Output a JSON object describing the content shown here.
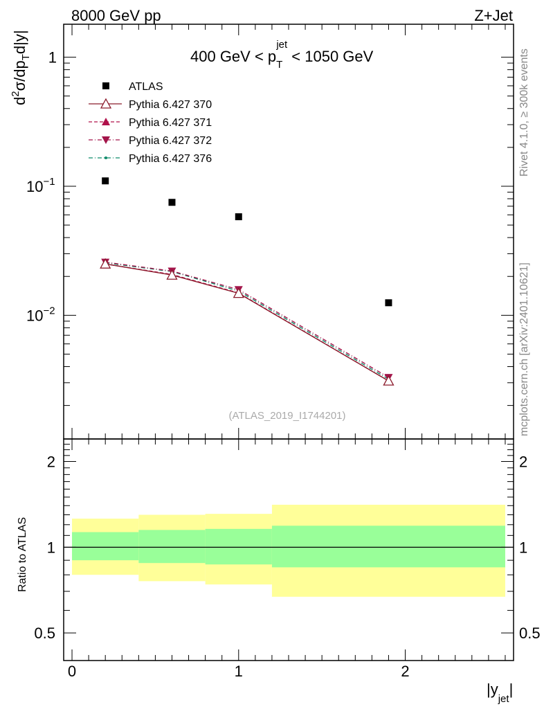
{
  "header": {
    "left": "8000 GeV pp",
    "right": "Z+Jet",
    "cut_prefix": "400 GeV < p",
    "cut_sup": "jet",
    "cut_sub": "T",
    "cut_suffix": " < 1050 GeV"
  },
  "side": {
    "rivet": "Rivet 4.1.0, ≥ 300k events",
    "mcplots": "mcplots.cern.ch [arXiv:2401.10621]"
  },
  "watermark": "(ATLAS_2019_I1744201)",
  "axes": {
    "ylabel_main": "d²σ/dp_T d|y|",
    "ylabel_main_parts": {
      "a": "d",
      "a_sup": "2",
      "b": "σ/dp",
      "b_sub": "T",
      "c": "d|y|"
    },
    "ylabel_ratio": "Ratio to ATLAS",
    "xlabel": "|y_jet|",
    "xlabel_parts": {
      "a": "|y",
      "a_sub": "jet",
      "b": "|"
    },
    "xticks": [
      "0",
      "1",
      "2"
    ],
    "yticks_main": [
      {
        "value": 1,
        "label": "1"
      },
      {
        "value": 0.1,
        "base": "10",
        "exp": "−1"
      },
      {
        "value": 0.01,
        "base": "10",
        "exp": "−2"
      }
    ],
    "yticks_ratio": [
      "0.5",
      "1",
      "2"
    ]
  },
  "legend": [
    {
      "label": "ATLAS",
      "style": "data"
    },
    {
      "label": "Pythia 6.427 370",
      "style": "open-triangle-up",
      "color": "#8b1a2b"
    },
    {
      "label": "Pythia 6.427 371",
      "style": "triangle-up",
      "color": "#b0104a"
    },
    {
      "label": "Pythia 6.427 372",
      "style": "triangle-down",
      "color": "#a3154a"
    },
    {
      "label": "Pythia 6.427 376",
      "style": "dot",
      "color": "#0f8a6a"
    }
  ],
  "chart_data": {
    "type": "scatter",
    "title": "400 GeV < p_T^jet < 1050 GeV",
    "xlabel": "|y_jet|",
    "ylabel": "d²σ/dp_T d|y|",
    "xlim": [
      -0.05,
      2.65
    ],
    "ylim": [
      0.0011,
      1.8
    ],
    "yscale": "log",
    "bin_edges": [
      0,
      0.4,
      0.8,
      1.2,
      2.6
    ],
    "x": [
      0.2,
      0.6,
      1.0,
      1.9
    ],
    "series": [
      {
        "name": "ATLAS",
        "values": [
          0.11,
          0.075,
          0.058,
          0.0125
        ],
        "color": "#000000"
      },
      {
        "name": "Pythia 6.427 370",
        "values": [
          0.025,
          0.0205,
          0.0148,
          0.0031
        ],
        "color": "#8b1a2b"
      },
      {
        "name": "Pythia 6.427 371",
        "values": [
          0.025,
          0.0207,
          0.0149,
          0.0031
        ],
        "color": "#b0104a"
      },
      {
        "name": "Pythia 6.427 372",
        "values": [
          0.0258,
          0.022,
          0.0158,
          0.0033
        ],
        "color": "#a3154a"
      },
      {
        "name": "Pythia 6.427 376",
        "values": [
          0.0255,
          0.0218,
          0.0154,
          0.0032
        ],
        "color": "#0f8a6a"
      }
    ],
    "ratio_panel": {
      "ylabel": "Ratio to ATLAS",
      "ylim": [
        0.4,
        2.4
      ],
      "yscale": "log",
      "reference_line": 1,
      "bands": [
        {
          "x_from": 0.0,
          "x_to": 0.4,
          "stat_low": 0.9,
          "stat_high": 1.13,
          "total_low": 0.8,
          "total_high": 1.26,
          "color_total": "#ffff99",
          "color_stat": "#99ff99"
        },
        {
          "x_from": 0.4,
          "x_to": 0.8,
          "stat_low": 0.88,
          "stat_high": 1.15,
          "total_low": 0.76,
          "total_high": 1.3,
          "color_total": "#ffff99",
          "color_stat": "#99ff99"
        },
        {
          "x_from": 0.8,
          "x_to": 1.2,
          "stat_low": 0.87,
          "stat_high": 1.16,
          "total_low": 0.74,
          "total_high": 1.31,
          "color_total": "#ffff99",
          "color_stat": "#99ff99"
        },
        {
          "x_from": 1.2,
          "x_to": 2.6,
          "stat_low": 0.85,
          "stat_high": 1.19,
          "total_low": 0.67,
          "total_high": 1.41,
          "color_total": "#ffff99",
          "color_stat": "#99ff99"
        }
      ]
    }
  }
}
